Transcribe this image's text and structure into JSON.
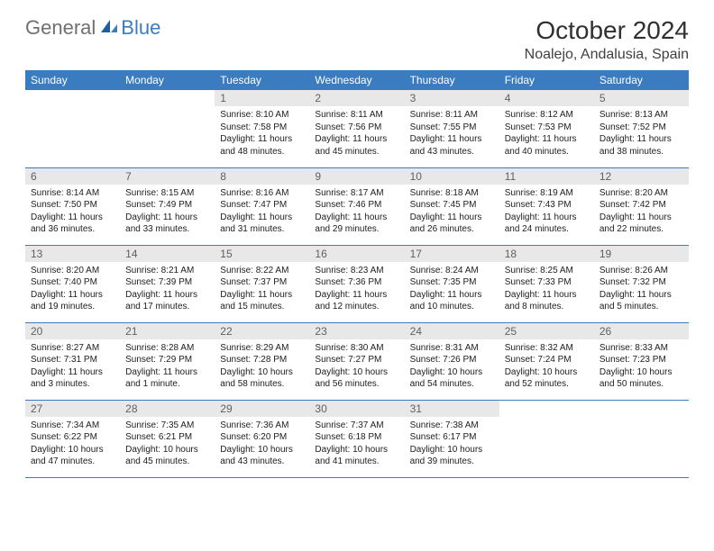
{
  "brand": {
    "part1": "General",
    "part2": "Blue"
  },
  "title": "October 2024",
  "location": "Noalejo, Andalusia, Spain",
  "dayHeaders": [
    "Sunday",
    "Monday",
    "Tuesday",
    "Wednesday",
    "Thursday",
    "Friday",
    "Saturday"
  ],
  "colors": {
    "headerBg": "#3b7bbf",
    "headerText": "#ffffff",
    "dayNumBg": "#e8e8e8",
    "dayNumText": "#606060",
    "borderColor": "#3b7bbf",
    "logoGray": "#707070",
    "logoBlue": "#3b7bbf"
  },
  "weeks": [
    [
      null,
      null,
      {
        "n": "1",
        "sr": "8:10 AM",
        "ss": "7:58 PM",
        "dl": "11 hours and 48 minutes."
      },
      {
        "n": "2",
        "sr": "8:11 AM",
        "ss": "7:56 PM",
        "dl": "11 hours and 45 minutes."
      },
      {
        "n": "3",
        "sr": "8:11 AM",
        "ss": "7:55 PM",
        "dl": "11 hours and 43 minutes."
      },
      {
        "n": "4",
        "sr": "8:12 AM",
        "ss": "7:53 PM",
        "dl": "11 hours and 40 minutes."
      },
      {
        "n": "5",
        "sr": "8:13 AM",
        "ss": "7:52 PM",
        "dl": "11 hours and 38 minutes."
      }
    ],
    [
      {
        "n": "6",
        "sr": "8:14 AM",
        "ss": "7:50 PM",
        "dl": "11 hours and 36 minutes."
      },
      {
        "n": "7",
        "sr": "8:15 AM",
        "ss": "7:49 PM",
        "dl": "11 hours and 33 minutes."
      },
      {
        "n": "8",
        "sr": "8:16 AM",
        "ss": "7:47 PM",
        "dl": "11 hours and 31 minutes."
      },
      {
        "n": "9",
        "sr": "8:17 AM",
        "ss": "7:46 PM",
        "dl": "11 hours and 29 minutes."
      },
      {
        "n": "10",
        "sr": "8:18 AM",
        "ss": "7:45 PM",
        "dl": "11 hours and 26 minutes."
      },
      {
        "n": "11",
        "sr": "8:19 AM",
        "ss": "7:43 PM",
        "dl": "11 hours and 24 minutes."
      },
      {
        "n": "12",
        "sr": "8:20 AM",
        "ss": "7:42 PM",
        "dl": "11 hours and 22 minutes."
      }
    ],
    [
      {
        "n": "13",
        "sr": "8:20 AM",
        "ss": "7:40 PM",
        "dl": "11 hours and 19 minutes."
      },
      {
        "n": "14",
        "sr": "8:21 AM",
        "ss": "7:39 PM",
        "dl": "11 hours and 17 minutes."
      },
      {
        "n": "15",
        "sr": "8:22 AM",
        "ss": "7:37 PM",
        "dl": "11 hours and 15 minutes."
      },
      {
        "n": "16",
        "sr": "8:23 AM",
        "ss": "7:36 PM",
        "dl": "11 hours and 12 minutes."
      },
      {
        "n": "17",
        "sr": "8:24 AM",
        "ss": "7:35 PM",
        "dl": "11 hours and 10 minutes."
      },
      {
        "n": "18",
        "sr": "8:25 AM",
        "ss": "7:33 PM",
        "dl": "11 hours and 8 minutes."
      },
      {
        "n": "19",
        "sr": "8:26 AM",
        "ss": "7:32 PM",
        "dl": "11 hours and 5 minutes."
      }
    ],
    [
      {
        "n": "20",
        "sr": "8:27 AM",
        "ss": "7:31 PM",
        "dl": "11 hours and 3 minutes."
      },
      {
        "n": "21",
        "sr": "8:28 AM",
        "ss": "7:29 PM",
        "dl": "11 hours and 1 minute."
      },
      {
        "n": "22",
        "sr": "8:29 AM",
        "ss": "7:28 PM",
        "dl": "10 hours and 58 minutes."
      },
      {
        "n": "23",
        "sr": "8:30 AM",
        "ss": "7:27 PM",
        "dl": "10 hours and 56 minutes."
      },
      {
        "n": "24",
        "sr": "8:31 AM",
        "ss": "7:26 PM",
        "dl": "10 hours and 54 minutes."
      },
      {
        "n": "25",
        "sr": "8:32 AM",
        "ss": "7:24 PM",
        "dl": "10 hours and 52 minutes."
      },
      {
        "n": "26",
        "sr": "8:33 AM",
        "ss": "7:23 PM",
        "dl": "10 hours and 50 minutes."
      }
    ],
    [
      {
        "n": "27",
        "sr": "7:34 AM",
        "ss": "6:22 PM",
        "dl": "10 hours and 47 minutes."
      },
      {
        "n": "28",
        "sr": "7:35 AM",
        "ss": "6:21 PM",
        "dl": "10 hours and 45 minutes."
      },
      {
        "n": "29",
        "sr": "7:36 AM",
        "ss": "6:20 PM",
        "dl": "10 hours and 43 minutes."
      },
      {
        "n": "30",
        "sr": "7:37 AM",
        "ss": "6:18 PM",
        "dl": "10 hours and 41 minutes."
      },
      {
        "n": "31",
        "sr": "7:38 AM",
        "ss": "6:17 PM",
        "dl": "10 hours and 39 minutes."
      },
      null,
      null
    ]
  ]
}
